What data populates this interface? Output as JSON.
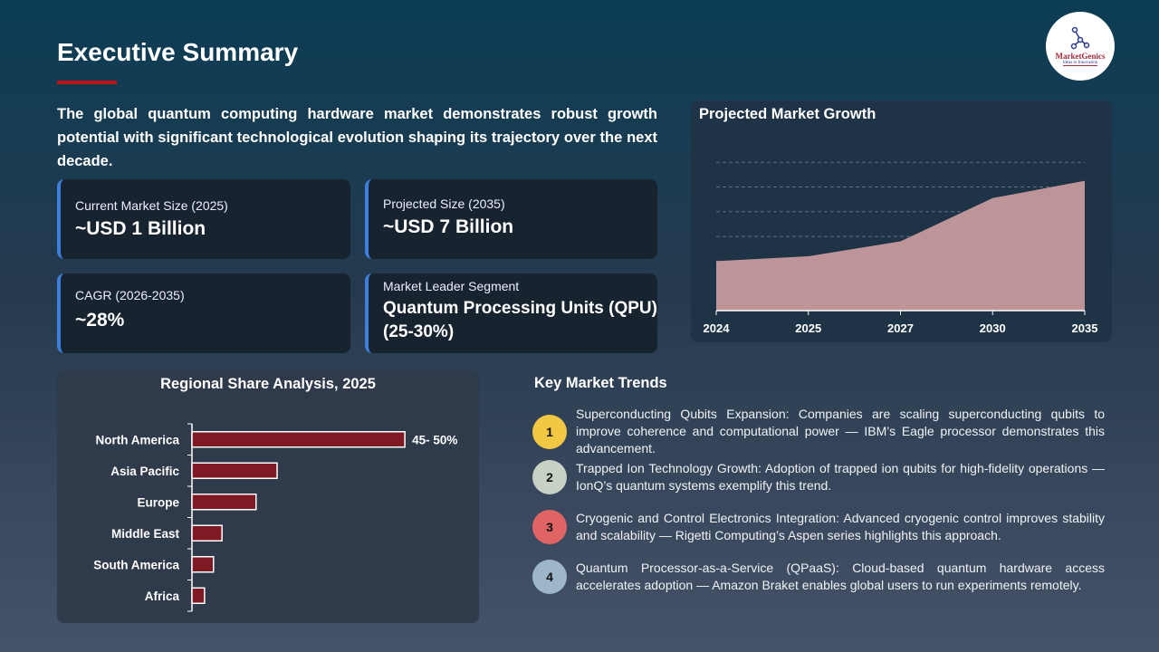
{
  "header": {
    "title": "Executive Summary",
    "logo": {
      "name": "MarketGenics",
      "tagline": "Ideas to Innovation",
      "icon": "network-nodes-icon"
    }
  },
  "intro": "The global quantum computing hardware market demonstrates robust growth potential with significant technological evolution shaping its trajectory over the next decade.",
  "cards": [
    {
      "label": "Current Market Size (2025)",
      "value": "~USD 1 Billion"
    },
    {
      "label": "Projected Size (2035)",
      "value": "~USD 7 Billion"
    },
    {
      "label": "CAGR (2026-2035)",
      "value": "~28%"
    },
    {
      "label": "Market Leader Segment",
      "value": "Quantum Processing Units (QPU) (25-30%)"
    }
  ],
  "colors": {
    "accent": "#c0141c",
    "card_border": "#3f7fdc",
    "area_fill": "#bd9598",
    "bar_fill": "#7f1a24"
  },
  "chart_data": [
    {
      "type": "area",
      "title": "Projected Market Growth",
      "categories": [
        "2024",
        "2025",
        "2027",
        "2030",
        "2035"
      ],
      "values": [
        2.0,
        2.2,
        2.8,
        4.55,
        5.25
      ],
      "ylim": [
        0,
        6
      ],
      "grid": true,
      "gridlines": "dashed horizontal"
    },
    {
      "type": "bar",
      "orientation": "horizontal",
      "title": "Regional Share Analysis, 2025",
      "categories": [
        "North America",
        "Asia Pacific",
        "Europe",
        "Middle East",
        "South America",
        "Africa"
      ],
      "values": [
        47.5,
        19,
        14.3,
        6.7,
        4.8,
        2.8
      ],
      "data_labels": {
        "North America": "45- 50%"
      },
      "grid": false
    }
  ],
  "trends": {
    "title": "Key Market Trends",
    "items": [
      {
        "num": "1",
        "color": "#f2c744",
        "text": "Superconducting Qubits Expansion: Companies are scaling superconducting qubits to improve coherence and computational power — IBM’s Eagle processor demonstrates this advancement."
      },
      {
        "num": "2",
        "color": "#c8d2c4",
        "text": "Trapped Ion Technology Growth: Adoption of trapped ion qubits for high-fidelity operations — IonQ’s quantum systems exemplify this trend."
      },
      {
        "num": "3",
        "color": "#e06464",
        "text": "Cryogenic and Control Electronics Integration: Advanced cryogenic control improves stability and scalability — Rigetti Computing’s Aspen series highlights this approach."
      },
      {
        "num": "4",
        "color": "#9db7c8",
        "text": "Quantum Processor-as-a-Service (QPaaS): Cloud-based quantum hardware access accelerates adoption — Amazon Braket enables global users to run experiments remotely."
      }
    ]
  }
}
